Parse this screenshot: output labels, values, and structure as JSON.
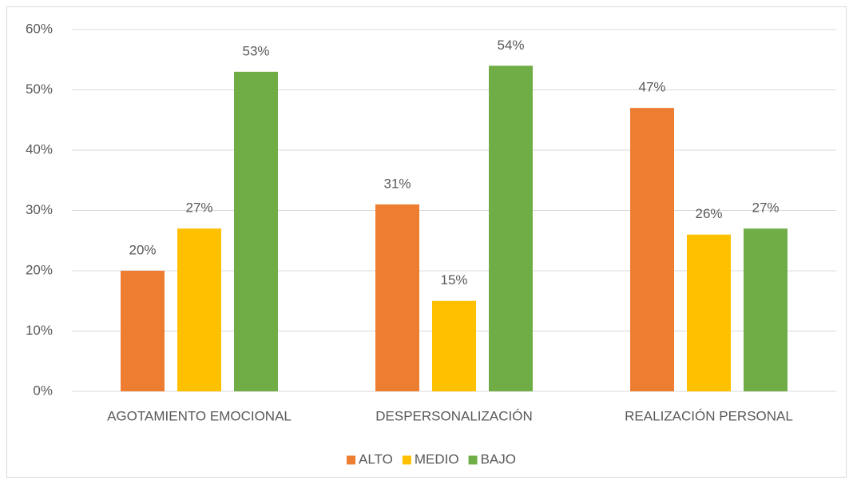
{
  "chart_data": {
    "type": "bar",
    "categories": [
      "AGOTAMIENTO EMOCIONAL",
      "DESPERSONALIZACIÓN",
      "REALIZACIÓN PERSONAL"
    ],
    "series": [
      {
        "name": "ALTO",
        "color": "#ED7D31",
        "values": [
          20,
          31,
          47
        ],
        "value_labels": [
          "20%",
          "31%",
          "47%"
        ]
      },
      {
        "name": "MEDIO",
        "color": "#FFC000",
        "values": [
          27,
          15,
          26
        ],
        "value_labels": [
          "27%",
          "15%",
          "26%"
        ]
      },
      {
        "name": "BAJO",
        "color": "#70AD47",
        "values": [
          53,
          54,
          27
        ],
        "value_labels": [
          "53%",
          "54%",
          "27%"
        ]
      }
    ],
    "ylim": [
      0,
      60
    ],
    "yticks": [
      {
        "value": 0,
        "label": "0%"
      },
      {
        "value": 10,
        "label": "10%"
      },
      {
        "value": 20,
        "label": "20%"
      },
      {
        "value": 30,
        "label": "30%"
      },
      {
        "value": 40,
        "label": "40%"
      },
      {
        "value": 50,
        "label": "50%"
      },
      {
        "value": 60,
        "label": "60%"
      }
    ],
    "grid": true,
    "legend": "bottom"
  }
}
